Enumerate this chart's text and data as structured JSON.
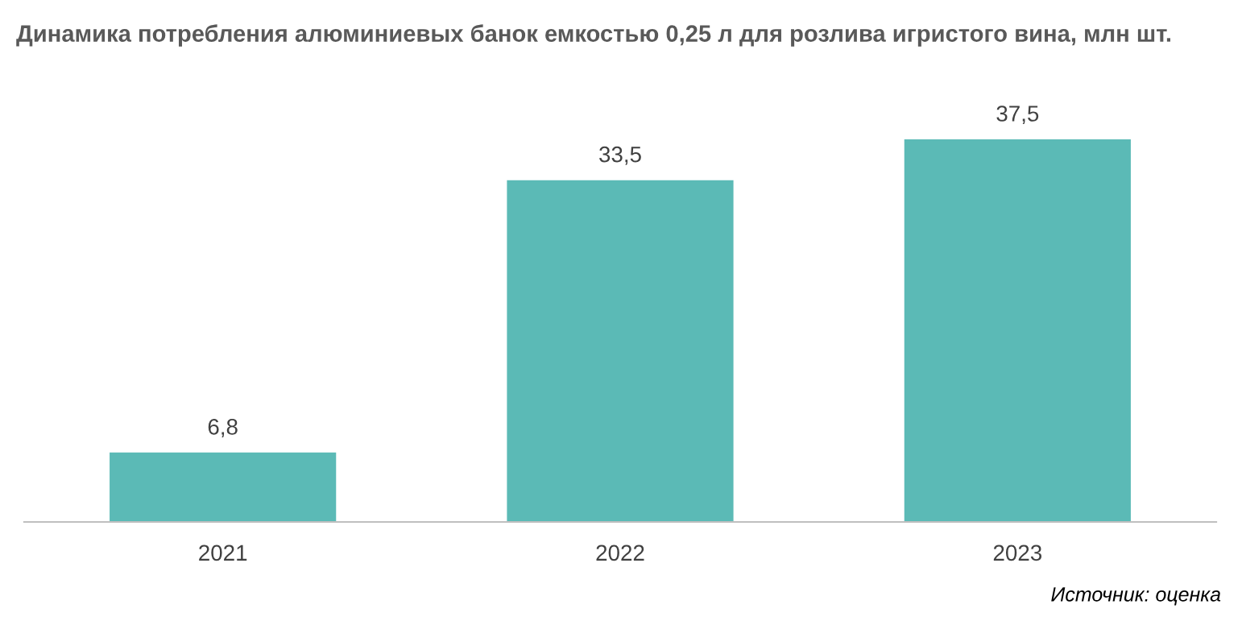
{
  "chart_data": {
    "type": "bar",
    "title": "Динамика потребления алюминиевых банок емкостью 0,25 л для розлива игристого вина, млн шт.",
    "categories": [
      "2021",
      "2022",
      "2023"
    ],
    "values": [
      6.8,
      33.5,
      37.5
    ],
    "value_labels": [
      "6,8",
      "33,5",
      "37,5"
    ],
    "color": "#5bbab6",
    "grid": false,
    "legend": false,
    "annotations": [
      "Источник: оценка"
    ]
  }
}
